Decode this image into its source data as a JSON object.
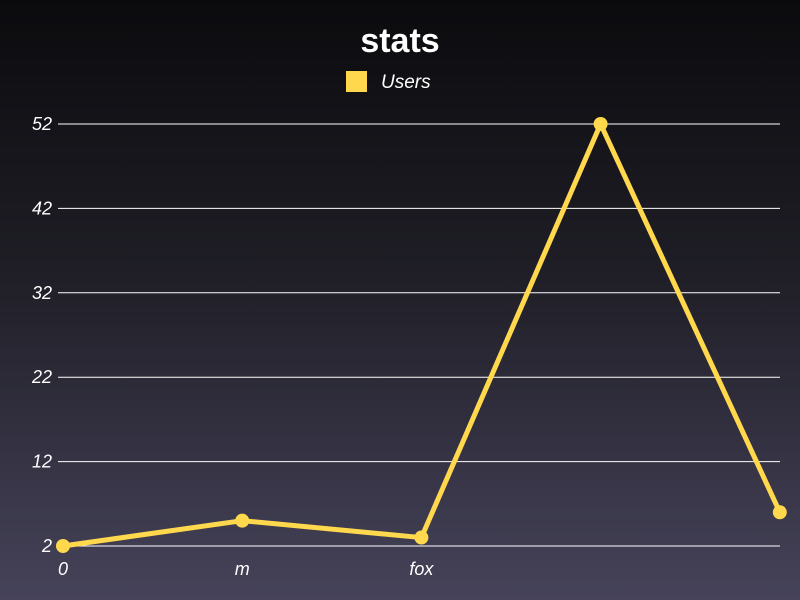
{
  "chart_data": {
    "type": "line",
    "title": "stats",
    "xlabel": "",
    "ylabel": "",
    "categories": [
      "0",
      "m",
      "fox",
      "",
      ""
    ],
    "series": [
      {
        "name": "Users",
        "values": [
          2,
          5,
          3,
          52,
          6
        ],
        "color": "#ffd84d"
      }
    ],
    "ylim": [
      2,
      52
    ],
    "yticks": [
      2,
      12,
      22,
      32,
      42,
      52
    ],
    "grid": true,
    "legend": "top-center"
  }
}
